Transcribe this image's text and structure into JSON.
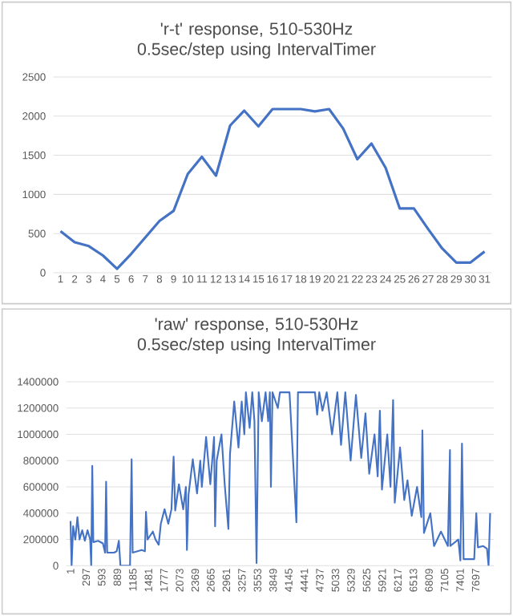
{
  "chart_data": [
    {
      "type": "line",
      "title": "'r-t' response, 510-530Hz 0.5sec/step using IntervalTimer",
      "categories": [
        "1",
        "2",
        "3",
        "4",
        "5",
        "6",
        "7",
        "8",
        "9",
        "10",
        "11",
        "12",
        "13",
        "14",
        "15",
        "16",
        "17",
        "18",
        "19",
        "20",
        "21",
        "22",
        "23",
        "24",
        "25",
        "26",
        "27",
        "28",
        "29",
        "30",
        "31"
      ],
      "series": [
        {
          "color": "#4472c4",
          "values": [
            530,
            390,
            340,
            220,
            50,
            240,
            450,
            660,
            790,
            1260,
            1480,
            1240,
            1880,
            2070,
            1870,
            2090,
            2090,
            2090,
            2060,
            2090,
            1840,
            1450,
            1650,
            1340,
            820,
            820,
            560,
            310,
            130,
            130,
            270
          ]
        }
      ],
      "ylim": [
        0,
        2500
      ],
      "yticks": [
        0,
        500,
        1000,
        1500,
        2000,
        2500
      ],
      "grid": "y",
      "marker": "none"
    },
    {
      "type": "line",
      "title": "'raw' response, 510-530Hz 0.5sec/step using IntervalTimer",
      "x": [
        1,
        21,
        51,
        92,
        132,
        172,
        223,
        273,
        324,
        374,
        394,
        414,
        434,
        525,
        616,
        657,
        677,
        697,
        828,
        878,
        919,
        949,
        1131,
        1161,
        1181,
        1353,
        1414,
        1434,
        1464,
        1565,
        1615,
        1676,
        1716,
        1787,
        1858,
        1918,
        1959,
        1989,
        2060,
        2141,
        2192,
        2212,
        2242,
        2323,
        2404,
        2465,
        2495,
        2576,
        2656,
        2727,
        2747,
        2777,
        2868,
        2929,
        2999,
        3030,
        3110,
        3191,
        3252,
        3302,
        3332,
        3403,
        3453,
        3494,
        3534,
        3575,
        3635,
        3706,
        3756,
        3787,
        3807,
        3837,
        3938,
        3978,
        4160,
        4291,
        4321,
        4644,
        4685,
        4725,
        4786,
        4867,
        4968,
        5069,
        5139,
        5220,
        5321,
        5422,
        5523,
        5603,
        5674,
        5775,
        5835,
        5876,
        5916,
        6017,
        6078,
        6128,
        6159,
        6260,
        6340,
        6401,
        6482,
        6583,
        6664,
        6684,
        6714,
        6835,
        6906,
        7037,
        7168,
        7208,
        7214,
        7366,
        7406,
        7436,
        7467,
        7668,
        7708,
        7739,
        7840,
        7911,
        7941,
        7971
      ],
      "series": [
        {
          "color": "#4472c4",
          "values": [
            340000,
            0,
            300000,
            200000,
            370000,
            200000,
            270000,
            190000,
            270000,
            200000,
            0,
            760000,
            180000,
            190000,
            170000,
            100000,
            640000,
            100000,
            100000,
            110000,
            190000,
            0,
            0,
            810000,
            100000,
            120000,
            110000,
            410000,
            200000,
            260000,
            200000,
            160000,
            320000,
            430000,
            320000,
            430000,
            830000,
            420000,
            620000,
            430000,
            600000,
            120000,
            540000,
            810000,
            550000,
            800000,
            600000,
            980000,
            620000,
            980000,
            300000,
            800000,
            1000000,
            620000,
            280000,
            850000,
            1250000,
            900000,
            1250000,
            1000000,
            1320000,
            1050000,
            1320000,
            1100000,
            20000,
            1320000,
            1100000,
            1320000,
            1100000,
            1320000,
            600000,
            1320000,
            1200000,
            1320000,
            1320000,
            330000,
            1320000,
            1320000,
            1150000,
            1320000,
            1180000,
            1320000,
            1000000,
            1320000,
            920000,
            1320000,
            800000,
            1300000,
            820000,
            1160000,
            700000,
            1000000,
            680000,
            1180000,
            580000,
            1000000,
            600000,
            1260000,
            480000,
            900000,
            500000,
            650000,
            380000,
            600000,
            370000,
            1030000,
            250000,
            400000,
            150000,
            260000,
            150000,
            880000,
            150000,
            200000,
            40000,
            930000,
            50000,
            50000,
            400000,
            140000,
            150000,
            130000,
            0,
            400000
          ]
        }
      ],
      "xlim": [
        -80,
        8040
      ],
      "xticks": [
        1,
        297,
        593,
        889,
        1185,
        1481,
        1777,
        2073,
        2369,
        2665,
        2961,
        3257,
        3553,
        3849,
        4145,
        4441,
        4737,
        5033,
        5329,
        5625,
        5921,
        6217,
        6513,
        6809,
        7105,
        7401,
        7697
      ],
      "ylim": [
        0,
        1400000
      ],
      "yticks": [
        0,
        200000,
        400000,
        600000,
        800000,
        1000000,
        1200000,
        1400000
      ],
      "grid": "y",
      "marker": "none"
    }
  ]
}
